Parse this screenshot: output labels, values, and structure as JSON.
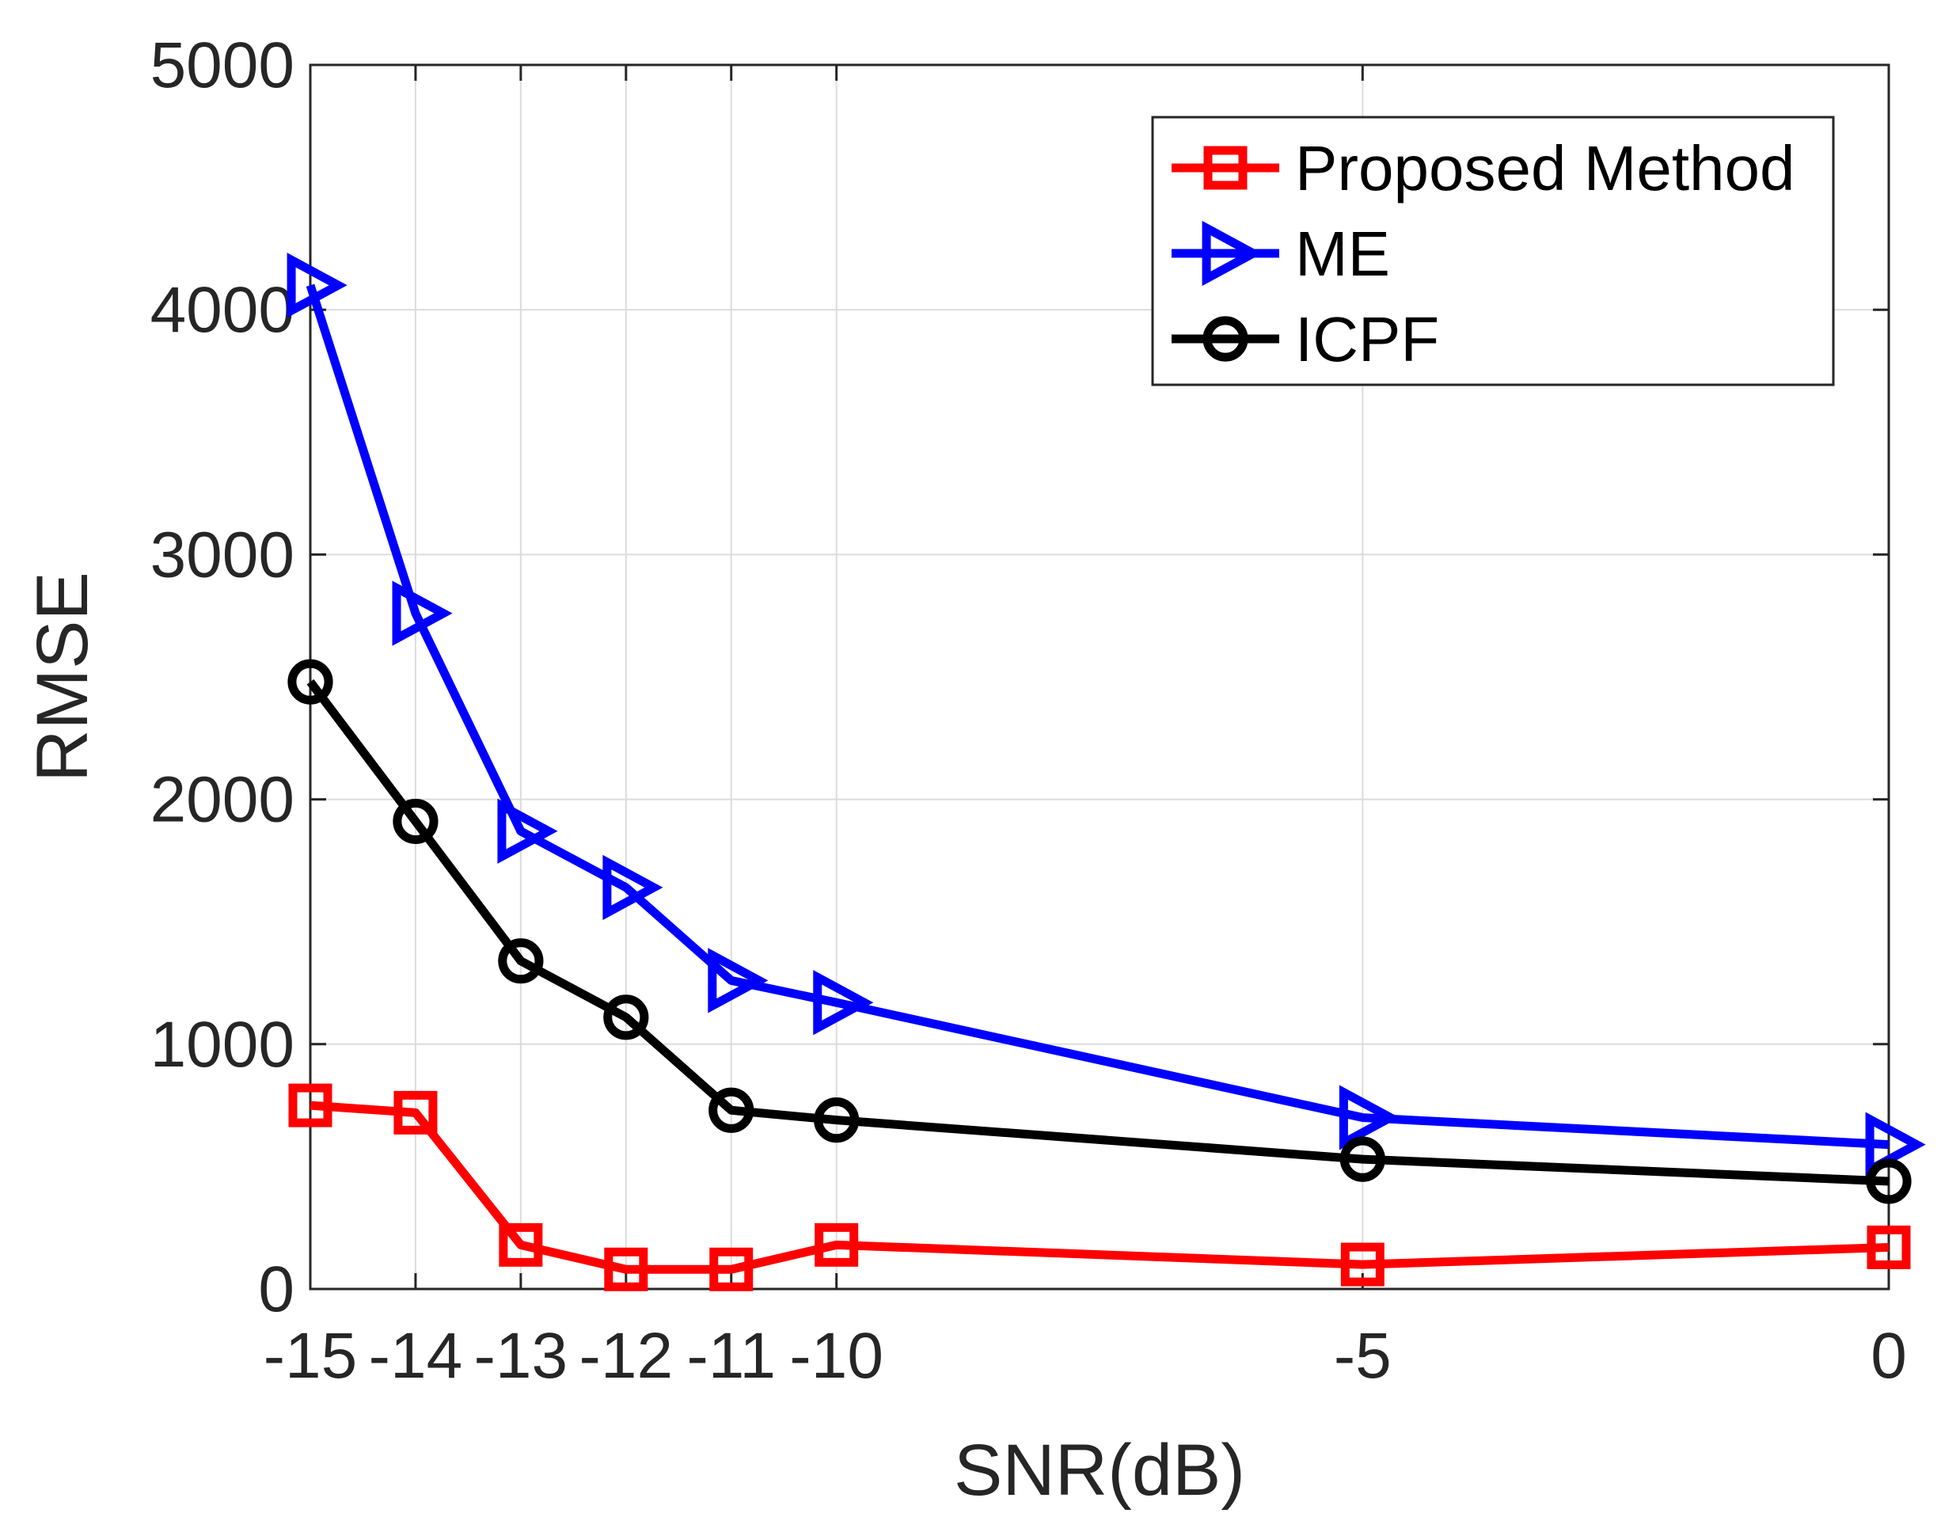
{
  "chart_data": {
    "type": "line",
    "xlabel": "SNR(dB)",
    "ylabel": "RMSE",
    "xlim": [
      -15,
      0
    ],
    "ylim": [
      0,
      5000
    ],
    "x": [
      -15,
      -14,
      -13,
      -12,
      -11,
      -10,
      -5,
      0
    ],
    "x_ticks": [
      -15,
      -14,
      -13,
      -12,
      -11,
      -10,
      -5,
      0
    ],
    "y_ticks": [
      0,
      1000,
      2000,
      3000,
      4000,
      5000
    ],
    "grid": true,
    "legend_position": "top-right",
    "series": [
      {
        "name": "Proposed Method",
        "color": "#ff0000",
        "marker": "square",
        "values": [
          750,
          720,
          180,
          80,
          80,
          180,
          100,
          170
        ]
      },
      {
        "name": "ME",
        "color": "#0000ff",
        "marker": "triangle-right",
        "values": [
          4100,
          2760,
          1870,
          1640,
          1260,
          1170,
          700,
          590
        ]
      },
      {
        "name": "ICPF",
        "color": "#000000",
        "marker": "circle",
        "values": [
          2480,
          1910,
          1340,
          1110,
          730,
          690,
          530,
          440
        ]
      }
    ]
  }
}
